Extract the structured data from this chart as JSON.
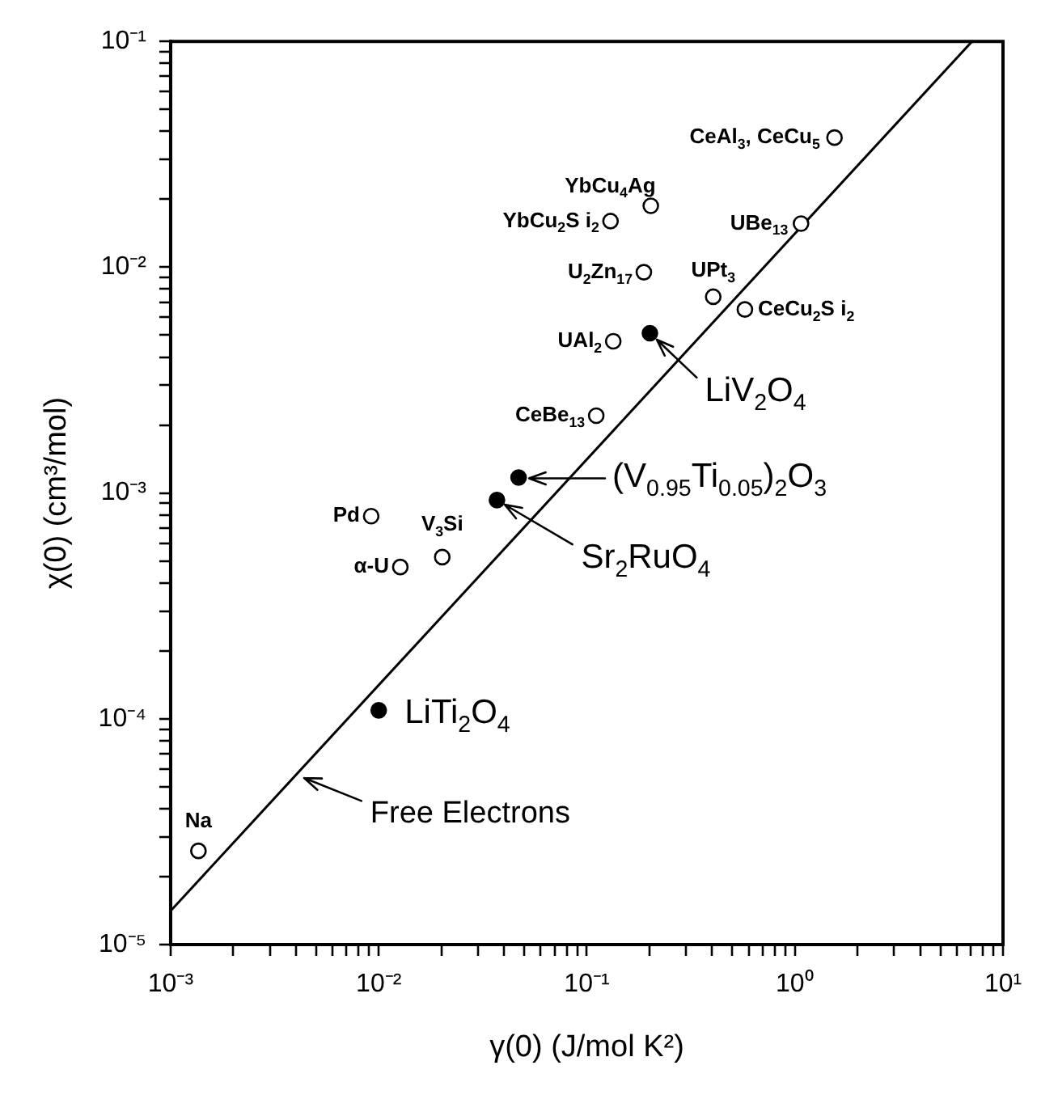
{
  "chart_data": {
    "type": "scatter",
    "xlabel": "γ(0) (J/mol K²)",
    "ylabel": "χ(0) (cm³/mol)",
    "log": "xy",
    "grid": false,
    "legend": false,
    "marker": "circle",
    "xlim": [
      0.001,
      10
    ],
    "ylim": [
      1e-05,
      0.1
    ],
    "xticks": [
      {
        "value": 0.001,
        "label": "10⁻³"
      },
      {
        "value": 0.002,
        "label": null
      },
      {
        "value": 0.003,
        "label": null
      },
      {
        "value": 0.004,
        "label": null
      },
      {
        "value": 0.005,
        "label": null
      },
      {
        "value": 0.006,
        "label": null
      },
      {
        "value": 0.007,
        "label": null
      },
      {
        "value": 0.008,
        "label": null
      },
      {
        "value": 0.009,
        "label": null
      },
      {
        "value": 0.01,
        "label": "10⁻²"
      },
      {
        "value": 0.02,
        "label": null
      },
      {
        "value": 0.03,
        "label": null
      },
      {
        "value": 0.04,
        "label": null
      },
      {
        "value": 0.05,
        "label": null
      },
      {
        "value": 0.06,
        "label": null
      },
      {
        "value": 0.07,
        "label": null
      },
      {
        "value": 0.08,
        "label": null
      },
      {
        "value": 0.09,
        "label": null
      },
      {
        "value": 0.1,
        "label": "10⁻¹"
      },
      {
        "value": 0.2,
        "label": null
      },
      {
        "value": 0.3,
        "label": null
      },
      {
        "value": 0.4,
        "label": null
      },
      {
        "value": 0.5,
        "label": null
      },
      {
        "value": 0.6,
        "label": null
      },
      {
        "value": 0.7,
        "label": null
      },
      {
        "value": 0.8,
        "label": null
      },
      {
        "value": 0.9,
        "label": null
      },
      {
        "value": 1,
        "label": "10⁰"
      },
      {
        "value": 2,
        "label": null
      },
      {
        "value": 3,
        "label": null
      },
      {
        "value": 4,
        "label": null
      },
      {
        "value": 5,
        "label": null
      },
      {
        "value": 6,
        "label": null
      },
      {
        "value": 7,
        "label": null
      },
      {
        "value": 8,
        "label": null
      },
      {
        "value": 9,
        "label": null
      },
      {
        "value": 10,
        "label": "10¹"
      }
    ],
    "yticks": [
      {
        "value": 1e-05,
        "label": "10⁻⁵"
      },
      {
        "value": 2e-05,
        "label": null
      },
      {
        "value": 3e-05,
        "label": null
      },
      {
        "value": 4e-05,
        "label": null
      },
      {
        "value": 5e-05,
        "label": null
      },
      {
        "value": 6e-05,
        "label": null
      },
      {
        "value": 7e-05,
        "label": null
      },
      {
        "value": 8e-05,
        "label": null
      },
      {
        "value": 9e-05,
        "label": null
      },
      {
        "value": 0.0001,
        "label": "10⁻⁴"
      },
      {
        "value": 0.0002,
        "label": null
      },
      {
        "value": 0.0003,
        "label": null
      },
      {
        "value": 0.0004,
        "label": null
      },
      {
        "value": 0.0005,
        "label": null
      },
      {
        "value": 0.0006,
        "label": null
      },
      {
        "value": 0.0007,
        "label": null
      },
      {
        "value": 0.0008,
        "label": null
      },
      {
        "value": 0.0009,
        "label": null
      },
      {
        "value": 0.001,
        "label": "10⁻³"
      },
      {
        "value": 0.002,
        "label": null
      },
      {
        "value": 0.003,
        "label": null
      },
      {
        "value": 0.004,
        "label": null
      },
      {
        "value": 0.005,
        "label": null
      },
      {
        "value": 0.006,
        "label": null
      },
      {
        "value": 0.007,
        "label": null
      },
      {
        "value": 0.008,
        "label": null
      },
      {
        "value": 0.009,
        "label": null
      },
      {
        "value": 0.01,
        "label": "10⁻²"
      },
      {
        "value": 0.02,
        "label": null
      },
      {
        "value": 0.03,
        "label": null
      },
      {
        "value": 0.04,
        "label": null
      },
      {
        "value": 0.05,
        "label": null
      },
      {
        "value": 0.06,
        "label": null
      },
      {
        "value": 0.07,
        "label": null
      },
      {
        "value": 0.08,
        "label": null
      },
      {
        "value": 0.09,
        "label": null
      },
      {
        "value": 0.1,
        "label": "10⁻¹"
      }
    ],
    "series": [
      {
        "type": "scatter",
        "color": "#000000",
        "x": [
          1.55,
          0.203,
          0.13,
          1.07,
          0.188,
          0.405,
          0.575,
          0.134,
          0.111,
          0.0092,
          0.0202,
          0.0127,
          0.00136
        ],
        "values": [
          0.0375,
          0.0187,
          0.016,
          0.0156,
          0.0095,
          0.0074,
          0.0065,
          0.0047,
          0.0022,
          0.00079,
          0.00052,
          0.00047,
          2.6e-05
        ]
      },
      {
        "type": "scatter",
        "color": "#000000",
        "x": [
          0.201,
          0.047,
          0.037,
          0.01
        ],
        "values": [
          0.0051,
          0.00117,
          0.00093,
          0.000109
        ]
      },
      {
        "type": "line",
        "color": "#000000",
        "marker": "none",
        "x": [
          0.001,
          7.1
        ],
        "values": [
          1.41e-05,
          0.1
        ]
      }
    ],
    "annotations": [
      {
        "text": "CeAl$_{3}$, CeCu$_{5}$",
        "x": 1.55,
        "y": 0.0375
      },
      {
        "text": "YbCu$_{4}$Ag",
        "x": 0.203,
        "y": 0.0187
      },
      {
        "text": "YbCu$_{2}$S i$_{2}$",
        "x": 0.13,
        "y": 0.016
      },
      {
        "text": "UBe$_{13}$",
        "x": 1.07,
        "y": 0.0156
      },
      {
        "text": "U$_{2}$Zn$_{17}$",
        "x": 0.188,
        "y": 0.0095
      },
      {
        "text": "UPt$_{3}$",
        "x": 0.405,
        "y": 0.0074
      },
      {
        "text": "CeCu$_{2}$S i$_{2}$",
        "x": 0.575,
        "y": 0.0065
      },
      {
        "text": "UAl$_{2}$",
        "x": 0.134,
        "y": 0.0047
      },
      {
        "text": "CeBe$_{13}$",
        "x": 0.111,
        "y": 0.0022
      },
      {
        "text": "Pd",
        "x": 0.0092,
        "y": 0.00079
      },
      {
        "text": "V$_{3}$Si",
        "x": 0.0202,
        "y": 0.00052
      },
      {
        "text": "α-U",
        "x": 0.0127,
        "y": 0.00047
      },
      {
        "text": "Na",
        "x": 0.00136,
        "y": 2.6e-05
      },
      {
        "text": "LiV$_{2}$O$_{4}$",
        "x": 0.201,
        "y": 0.0051
      },
      {
        "text": "(V$_{0.95}$Ti$_{0.05}$)$_{2}$O$_{3}$",
        "x": 0.047,
        "y": 0.00117
      },
      {
        "text": "Sr$_{2}$RuO$_{4}$",
        "x": 0.037,
        "y": 0.00093
      },
      {
        "text": "LiTi$_{2}$O$_{4}$",
        "x": 0.01,
        "y": 0.000109
      },
      {
        "text": "Free Electrons",
        "x": 0.004,
        "y": 5.64e-05
      }
    ]
  }
}
